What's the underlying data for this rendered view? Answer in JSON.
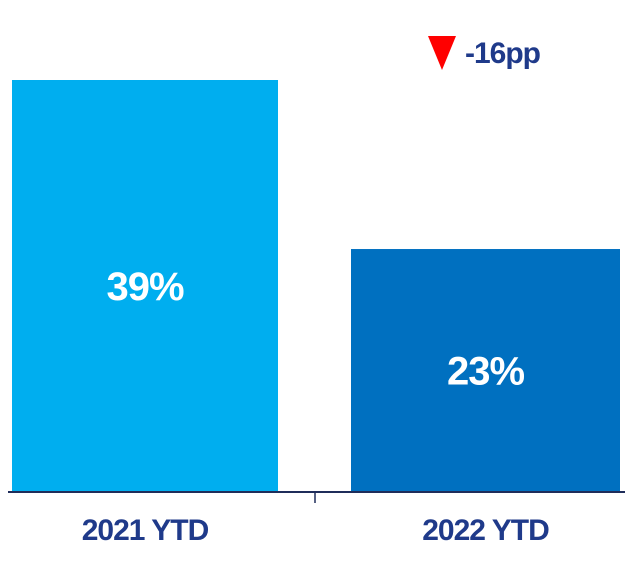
{
  "chart_data": {
    "type": "bar",
    "categories": [
      "2021 YTD",
      "2022 YTD"
    ],
    "values": [
      39,
      23
    ],
    "value_labels": [
      "39%",
      "23%"
    ],
    "ylim": [
      0,
      39
    ],
    "grid": false,
    "legend": "none",
    "change": {
      "label": "-16pp",
      "direction": "down",
      "icon": "down-triangle-icon"
    },
    "colors": {
      "bars": [
        "#00AEEF",
        "#0070C0"
      ],
      "value_label": "#FFFFFF",
      "tick_label": "#1F3A8A",
      "axis": "#1F2D5A",
      "change_icon": "#FF0000",
      "change_text": "#1F3A8A"
    }
  }
}
